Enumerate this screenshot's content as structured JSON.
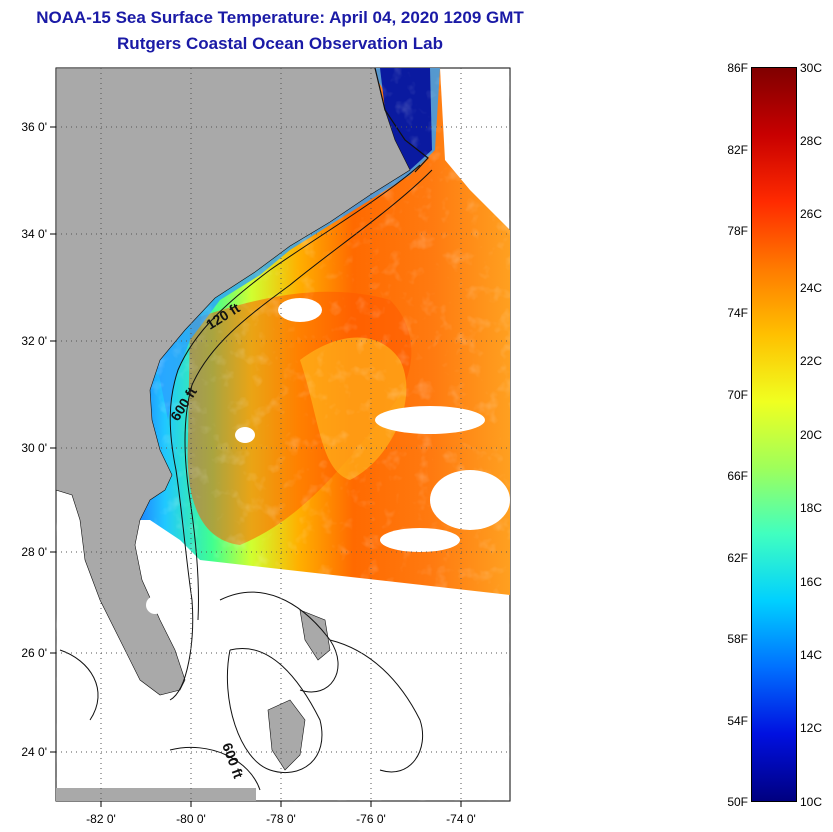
{
  "title": {
    "line1": "NOAA-15 Sea Surface Temperature:  April 04, 2020 1209 GMT",
    "line2": "Rutgers Coastal Ocean Observation Lab"
  },
  "map": {
    "lat_ticks": [
      "36 0'",
      "34 0'",
      "32 0'",
      "30 0'",
      "28 0'",
      "26 0'",
      "24 0'"
    ],
    "lon_ticks": [
      "-82 0'",
      "-80 0'",
      "-78 0'",
      "-76 0'",
      "-74 0'"
    ],
    "contour_labels": [
      "120 ft",
      "600 ft",
      "600 ft"
    ],
    "colors": {
      "land": "#a9a9a9",
      "no_data": "#ffffff",
      "grid": "#555555"
    }
  },
  "colorbar": {
    "fahrenheit_labels": [
      "86F",
      "82F",
      "78F",
      "74F",
      "70F",
      "66F",
      "62F",
      "58F",
      "54F",
      "50F"
    ],
    "celsius_labels": [
      "30C",
      "28C",
      "26C",
      "24C",
      "22C",
      "20C",
      "18C",
      "16C",
      "14C",
      "12C",
      "10C"
    ],
    "range_f": [
      50,
      86
    ],
    "range_c": [
      10,
      30
    ],
    "gradient": [
      "#800000",
      "#c80000",
      "#ff2a00",
      "#ff7a00",
      "#ffc000",
      "#f0ff20",
      "#9fff5a",
      "#40ffc0",
      "#00d0ff",
      "#0070ff",
      "#0010e0",
      "#000080"
    ]
  }
}
